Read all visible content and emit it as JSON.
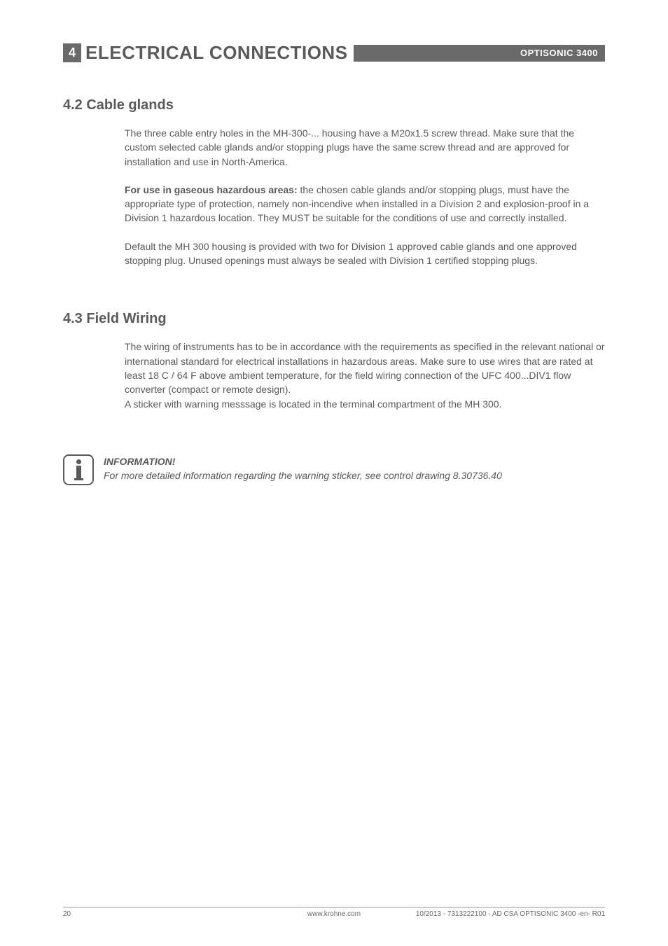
{
  "header": {
    "section_number": "4",
    "section_title": "ELECTRICAL CONNECTIONS",
    "product": "OPTISONIC 3400"
  },
  "sections": {
    "s42": {
      "title": "4.2  Cable glands",
      "p1": "The three cable entry holes in the MH-300-... housing have a M20x1.5 screw thread. Make sure that the custom selected cable glands and/or stopping plugs have the same screw thread and are approved for installation and use in North-America.",
      "p2_lead": "For use in gaseous hazardous areas:",
      "p2_rest": " the chosen cable glands and/or stopping plugs,  must have the appropriate type of protection, namely non-incendive when installed in a Division 2 and explosion-proof in a Division 1 hazardous location. They MUST be suitable for the conditions of use and correctly installed.",
      "p3": "Default the MH 300 housing is provided with two for Division 1 approved cable glands  and one approved stopping plug. Unused openings must always be sealed with Division 1 certified stopping plugs."
    },
    "s43": {
      "title": "4.3  Field Wiring",
      "p1": "The wiring of instruments has to be in accordance with the requirements as specified in the relevant national or international standard for electrical installations in hazardous areas. Make sure to use wires that are rated at least 18  C / 64  F above ambient temperature, for the field wiring connection of the UFC 400...DIV1 flow converter (compact or remote design).",
      "p2": "A sticker with warning messsage is located in the terminal compartment of the MH 300."
    }
  },
  "info": {
    "heading": "INFORMATION!",
    "body": "For more detailed information regarding the warning sticker, see control drawing 8.30736.40"
  },
  "footer": {
    "page": "20",
    "url": "www.krohne.com",
    "docinfo": "10/2013 - 7313222100 - AD CSA OPTISONIC 3400 -en- R01"
  },
  "colors": {
    "text": "#5a5a5a",
    "bar": "#6a6a6a",
    "white": "#ffffff",
    "rule": "#9a9a9a"
  }
}
